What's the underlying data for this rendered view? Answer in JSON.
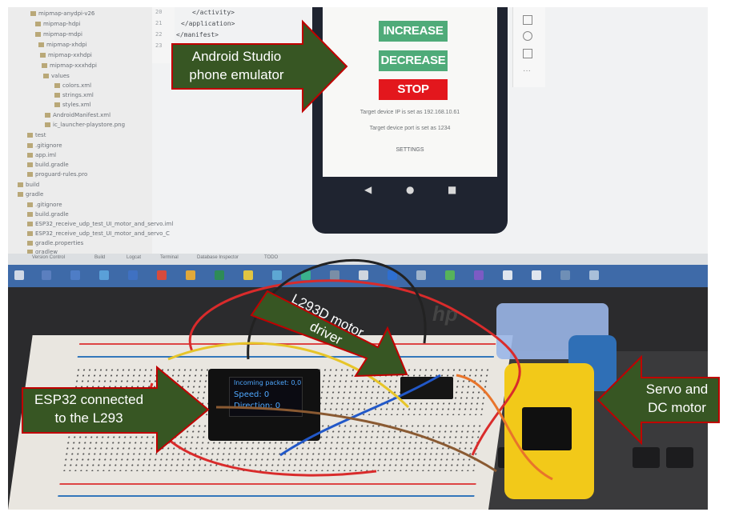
{
  "ide": {
    "tree_items": [
      "mipmap-anydpi-v26",
      "mipmap-hdpi",
      "mipmap-mdpi",
      "mipmap-xhdpi",
      "mipmap-xxhdpi",
      "mipmap-xxxhdpi",
      "values",
      "colors.xml",
      "strings.xml",
      "styles.xml",
      "AndroidManifest.xml",
      "ic_launcher-playstore.png",
      "test",
      ".gitignore",
      "app.iml",
      "build.gradle",
      "proguard-rules.pro",
      "build",
      "gradle",
      ".gitignore",
      "build.gradle",
      "ESP32_receive_udp_test_UI_motor_and_servo.iml",
      "ESP32_receive_udp_test_UI_motor_and_servo_C",
      "gradle.properties",
      "gradlew"
    ],
    "line_numbers": [
      "20",
      "21",
      "22",
      "23"
    ],
    "code_lines": [
      "</activity>",
      "</application>",
      "</manifest>"
    ],
    "status_tabs": [
      "Version Control",
      "Build",
      "Logcat",
      "Terminal",
      "Database Inspector",
      "TODO"
    ]
  },
  "phone": {
    "increase_label": "INCREASE",
    "decrease_label": "DECREASE",
    "stop_label": "STOP",
    "ip_text": "Target device IP is set as 192.168.10.61",
    "port_text": "Target device port is set as 1234",
    "settings_label": "SETTINGS",
    "nav_back_icon": "back-triangle-icon",
    "nav_home_icon": "home-circle-icon",
    "nav_recent_icon": "recent-square-icon"
  },
  "oled": {
    "line1": "Incoming packet: 0,0",
    "line2": "Speed: 0",
    "line3": "Direction: 0"
  },
  "laptop_brand": "hp",
  "annotations": {
    "emulator": [
      "Android Studio",
      "phone emulator"
    ],
    "driver": [
      "L293D motor",
      "driver"
    ],
    "esp32": [
      "ESP32 connected",
      "to the L293"
    ],
    "servo": [
      "Servo and",
      "DC motor"
    ]
  },
  "colors": {
    "callout_fill": "#375623",
    "callout_border": "#c00000",
    "button_green": "#4fab79",
    "button_red": "#e3171d"
  }
}
